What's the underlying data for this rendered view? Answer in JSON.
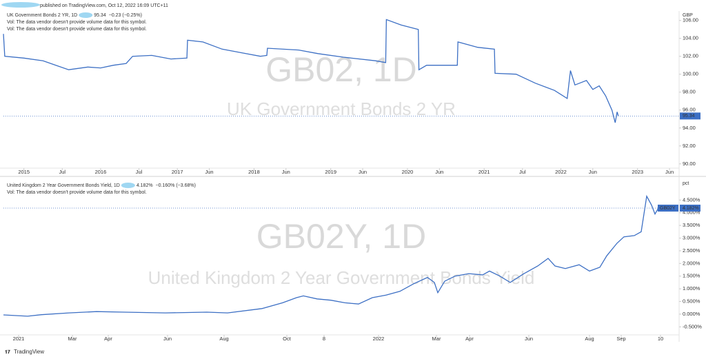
{
  "publish_note": "published on TradingView.com, Oct 12, 2022 16:09 UTC+11",
  "brand": "TradingView",
  "chart_data": [
    {
      "type": "line",
      "title": "UK Government Bonds 2 YR, 1D",
      "price": "95.34",
      "change": "−0.23 (−0.25%)",
      "notes": [
        "Vol: The data vendor doesn't provide volume data for this symbol.",
        "Vol: The data vendor doesn't provide volume data for this symbol."
      ],
      "watermark_symbol": "GB02, 1D",
      "watermark_name": "UK Government Bonds 2 YR",
      "unit": "GBP",
      "color": "#3c6fc4",
      "x": [
        -3.2,
        -3,
        0,
        3,
        5,
        7,
        10,
        12,
        14,
        16,
        17,
        20,
        23,
        25.5,
        25.6,
        28,
        31,
        34,
        37,
        38,
        38.1,
        43,
        46,
        50,
        55,
        56.6,
        56.7,
        59,
        61.7,
        61.8,
        63,
        67.8,
        67.9,
        71,
        73.6,
        73.7,
        77,
        80,
        83,
        85,
        85.5,
        86.2,
        88,
        89,
        90,
        91,
        92,
        92.5,
        92.8,
        93
      ],
      "values": [
        104.5,
        102.0,
        101.8,
        101.5,
        101.0,
        100.5,
        100.8,
        100.7,
        101.0,
        101.2,
        102.0,
        102.1,
        101.7,
        101.8,
        103.8,
        103.6,
        102.8,
        102.4,
        102.0,
        102.1,
        102.9,
        102.7,
        102.3,
        101.9,
        101.5,
        101.3,
        106.1,
        105.5,
        105.0,
        100.5,
        101.0,
        101.0,
        103.6,
        103.0,
        102.8,
        100.1,
        100.0,
        99.0,
        98.2,
        97.3,
        100.4,
        98.8,
        99.3,
        98.3,
        98.7,
        97.6,
        96.0,
        94.6,
        95.8,
        95.34
      ],
      "xlim": [
        -3.2,
        102.5
      ],
      "xticks": [
        {
          "value": 0,
          "label": "2015"
        },
        {
          "value": 6,
          "label": "Jul"
        },
        {
          "value": 12,
          "label": "2016"
        },
        {
          "value": 18,
          "label": "Jul"
        },
        {
          "value": 24,
          "label": "2017"
        },
        {
          "value": 29,
          "label": "Jun"
        },
        {
          "value": 36,
          "label": "2018"
        },
        {
          "value": 41,
          "label": "Jun"
        },
        {
          "value": 48,
          "label": "2019"
        },
        {
          "value": 53,
          "label": "Jun"
        },
        {
          "value": 60,
          "label": "2020"
        },
        {
          "value": 65,
          "label": "Jun"
        },
        {
          "value": 72,
          "label": "2021"
        },
        {
          "value": 78,
          "label": "Jul"
        },
        {
          "value": 84,
          "label": "2022"
        },
        {
          "value": 89,
          "label": "Jun"
        },
        {
          "value": 96,
          "label": "2023"
        },
        {
          "value": 101,
          "label": "Jun"
        }
      ],
      "ylim": [
        89.6,
        106.9
      ],
      "yticks": [
        {
          "value": 90,
          "label": "90.00"
        },
        {
          "value": 92,
          "label": "92.00"
        },
        {
          "value": 94,
          "label": "94.00"
        },
        {
          "value": 96,
          "label": "96.00"
        },
        {
          "value": 98,
          "label": "98.00"
        },
        {
          "value": 100,
          "label": "100.00"
        },
        {
          "value": 102,
          "label": "102.00"
        },
        {
          "value": 104,
          "label": "104.00"
        },
        {
          "value": 106,
          "label": "106.00"
        }
      ],
      "grid": false
    },
    {
      "type": "line",
      "title": "United Kingdom 2 Year Government Bonds Yield, 1D",
      "price": "4.182%",
      "change": "−0.160% (−3.68%)",
      "notes": [
        "Vol: The data vendor doesn't provide volume data for this symbol."
      ],
      "watermark_symbol": "GB02Y, 1D",
      "watermark_name": "United Kingdom 2 Year Government Bonds Yield",
      "unit": "pct",
      "symbol": "GB02Y",
      "color": "#3c6fc4",
      "x": [
        -11,
        6.5,
        16.5,
        36.5,
        56.5,
        76.5,
        106.5,
        136.5,
        151.5,
        176.5,
        191.5,
        201.5,
        206.5,
        216.5,
        226.5,
        236.5,
        246.5,
        256.5,
        266.5,
        276.5,
        286.5,
        296.5,
        301.5,
        304,
        309,
        316.5,
        326.5,
        336.5,
        341.5,
        349,
        356.5,
        366.5,
        376.5,
        384,
        389,
        396.5,
        406.5,
        414,
        421.5,
        426.5,
        434,
        439,
        446.5,
        451.5,
        455.5,
        459,
        461.5,
        464
      ],
      "values": [
        -0.03,
        -0.08,
        -0.02,
        0.05,
        0.1,
        0.08,
        0.05,
        0.08,
        0.05,
        0.22,
        0.45,
        0.65,
        0.72,
        0.6,
        0.55,
        0.45,
        0.4,
        0.65,
        0.75,
        0.9,
        1.2,
        1.45,
        1.25,
        0.85,
        1.3,
        1.5,
        1.6,
        1.55,
        1.7,
        1.5,
        1.25,
        1.6,
        1.9,
        2.2,
        1.9,
        1.8,
        1.95,
        1.7,
        1.85,
        2.3,
        2.8,
        3.05,
        3.1,
        3.25,
        4.65,
        4.3,
        3.95,
        4.182
      ],
      "xlim": [
        -11,
        479
      ],
      "xticks": [
        {
          "value": 0,
          "label": "2021"
        },
        {
          "value": 39,
          "label": "Mar"
        },
        {
          "value": 65,
          "label": "Apr"
        },
        {
          "value": 108,
          "label": "Jun"
        },
        {
          "value": 149,
          "label": "Aug"
        },
        {
          "value": 194.5,
          "label": "Oct"
        },
        {
          "value": 221.5,
          "label": "8"
        },
        {
          "value": 261,
          "label": "2022"
        },
        {
          "value": 303,
          "label": "Mar"
        },
        {
          "value": 327,
          "label": "Apr"
        },
        {
          "value": 370,
          "label": "Jun"
        },
        {
          "value": 414,
          "label": "Aug"
        },
        {
          "value": 437,
          "label": "Sep"
        },
        {
          "value": 465.5,
          "label": "10"
        }
      ],
      "ylim": [
        -0.79,
        5.27
      ],
      "yticks": [
        {
          "value": -0.5,
          "label": "-0.500%"
        },
        {
          "value": 0,
          "label": "0.000%"
        },
        {
          "value": 0.5,
          "label": "0.500%"
        },
        {
          "value": 1,
          "label": "1.000%"
        },
        {
          "value": 1.5,
          "label": "1.500%"
        },
        {
          "value": 2,
          "label": "2.000%"
        },
        {
          "value": 2.5,
          "label": "2.500%"
        },
        {
          "value": 3,
          "label": "3.000%"
        },
        {
          "value": 3.5,
          "label": "3.500%"
        },
        {
          "value": 4,
          "label": "4.000%"
        },
        {
          "value": 4.5,
          "label": "4.500%"
        }
      ],
      "grid": false
    }
  ]
}
